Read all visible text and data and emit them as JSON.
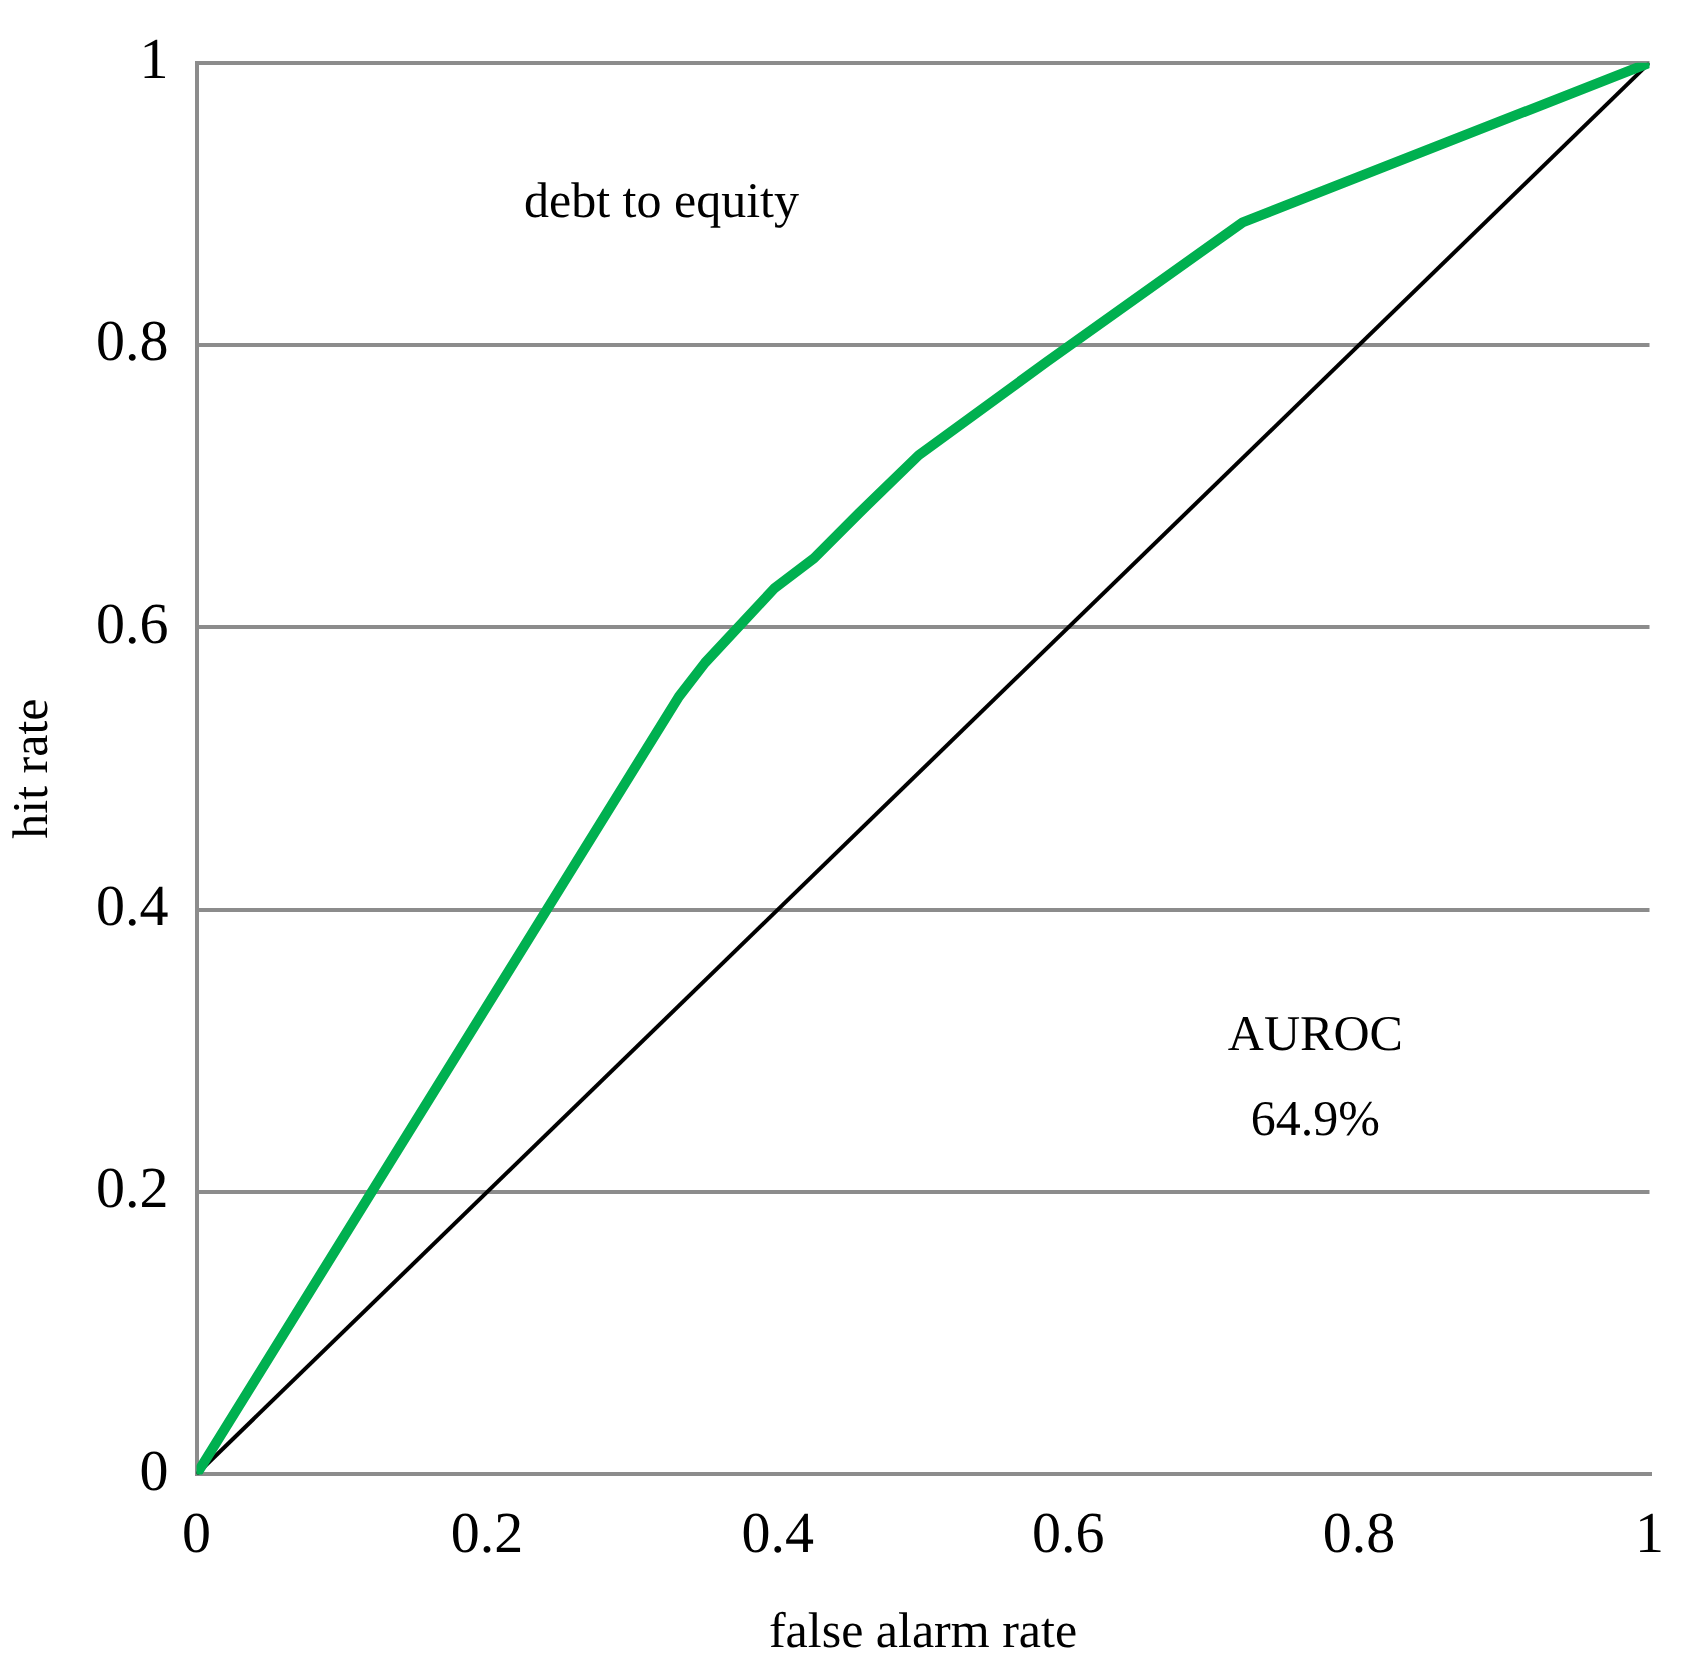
{
  "chart_data": {
    "type": "line",
    "xlabel": "false alarm rate",
    "ylabel": "hit rate",
    "xlim": [
      0,
      1
    ],
    "xticks": [
      0,
      0.2,
      0.4,
      0.6,
      0.8,
      1
    ],
    "ylim": [
      0,
      1
    ],
    "yticks": [
      0,
      0.2,
      0.4,
      0.6,
      0.8,
      1
    ],
    "grid": "y",
    "legend": false,
    "marker": "none",
    "line_style": "solid",
    "annotations": [
      "debt to equity",
      "AUROC",
      "64.9%"
    ],
    "series": [
      {
        "color": "#00b050",
        "x": [
          0,
          0.332,
          0.35,
          0.398,
          0.425,
          0.456,
          0.497,
          0.585,
          0.72,
          1
        ],
        "values": [
          0,
          0.551,
          0.575,
          0.628,
          0.649,
          0.681,
          0.722,
          0.788,
          0.887,
          1
        ]
      },
      {
        "color": "#000000",
        "x": [
          0,
          1
        ],
        "values": [
          0,
          1
        ]
      }
    ]
  }
}
